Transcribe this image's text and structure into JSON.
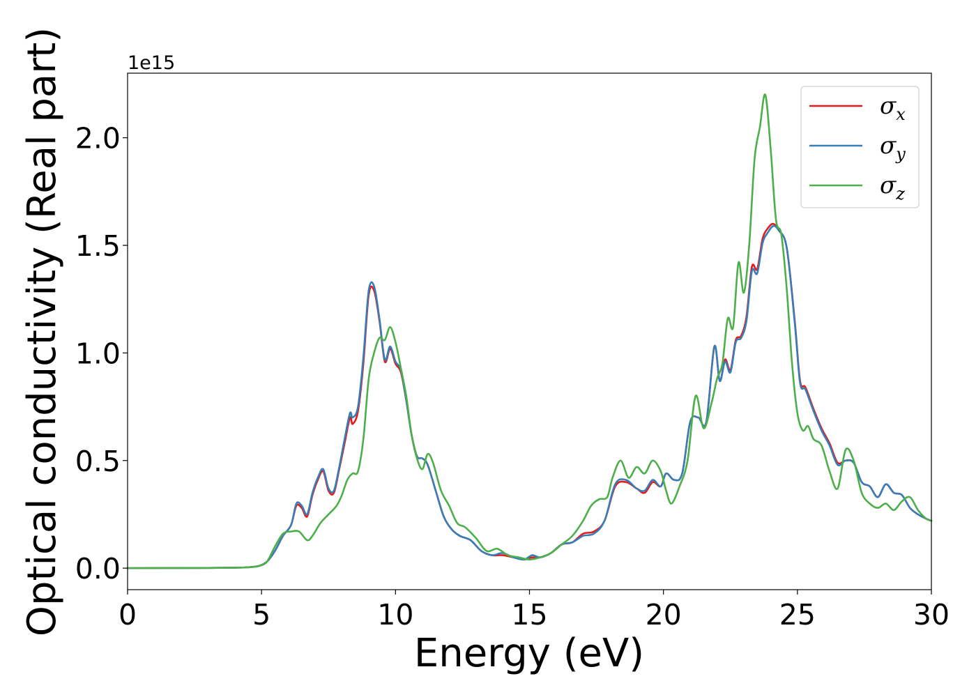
{
  "chart_data": {
    "type": "line",
    "xlabel": "Energy (eV)",
    "ylabel": "Optical conductivity (Real part)",
    "y_offset_text": "1e15",
    "xlim": [
      0,
      30
    ],
    "ylim": [
      -0.1,
      2.3
    ],
    "xticks": [
      {
        "value": 0,
        "label": "0"
      },
      {
        "value": 5,
        "label": "5"
      },
      {
        "value": 10,
        "label": "10"
      },
      {
        "value": 15,
        "label": "15"
      },
      {
        "value": 20,
        "label": "20"
      },
      {
        "value": 25,
        "label": "25"
      },
      {
        "value": 30,
        "label": "30"
      }
    ],
    "yticks": [
      {
        "value": 0.0,
        "label": "0.0"
      },
      {
        "value": 0.5,
        "label": "0.5"
      },
      {
        "value": 1.0,
        "label": "1.0"
      },
      {
        "value": 1.5,
        "label": "1.5"
      },
      {
        "value": 2.0,
        "label": "2.0"
      }
    ],
    "grid": false,
    "legend_position": "top-right",
    "series": [
      {
        "name": "σx",
        "name_base": "σ",
        "name_sub": "x",
        "color": "#e41a1c",
        "x": [
          0,
          3,
          4,
          4.5,
          4.9,
          5.2,
          5.5,
          5.8,
          6.1,
          6.3,
          6.5,
          6.7,
          6.9,
          7.1,
          7.3,
          7.5,
          7.7,
          7.9,
          8.1,
          8.3,
          8.4,
          8.6,
          8.8,
          9.0,
          9.2,
          9.4,
          9.6,
          9.8,
          10.0,
          10.2,
          10.4,
          10.6,
          10.8,
          11.0,
          11.2,
          11.5,
          11.8,
          12.1,
          12.4,
          12.8,
          13.2,
          13.6,
          14.0,
          14.4,
          14.8,
          15.1,
          15.4,
          15.8,
          16.2,
          16.6,
          17.0,
          17.4,
          17.8,
          18.2,
          18.6,
          19.0,
          19.3,
          19.6,
          19.9,
          20.1,
          20.4,
          20.7,
          21.0,
          21.3,
          21.6,
          21.9,
          22.1,
          22.3,
          22.5,
          22.7,
          22.9,
          23.1,
          23.3,
          23.5,
          23.7,
          23.9,
          24.1,
          24.3,
          24.6,
          24.9,
          25.1,
          25.3,
          25.6,
          25.9,
          26.2,
          26.5,
          26.8,
          27.1,
          27.4,
          27.7,
          28.0,
          28.3,
          28.6,
          28.9,
          29.2,
          29.5,
          29.8,
          30.0
        ],
        "values": [
          0,
          0.001,
          0.002,
          0.004,
          0.01,
          0.03,
          0.08,
          0.15,
          0.2,
          0.29,
          0.28,
          0.24,
          0.34,
          0.41,
          0.45,
          0.36,
          0.35,
          0.46,
          0.58,
          0.7,
          0.67,
          0.73,
          0.95,
          1.27,
          1.29,
          1.15,
          0.96,
          1.02,
          0.95,
          0.91,
          0.78,
          0.62,
          0.52,
          0.51,
          0.48,
          0.36,
          0.24,
          0.18,
          0.15,
          0.13,
          0.08,
          0.06,
          0.06,
          0.05,
          0.04,
          0.05,
          0.05,
          0.07,
          0.11,
          0.12,
          0.16,
          0.17,
          0.22,
          0.38,
          0.4,
          0.37,
          0.35,
          0.4,
          0.38,
          0.44,
          0.41,
          0.44,
          0.68,
          0.7,
          0.68,
          1.03,
          0.87,
          0.97,
          0.92,
          1.06,
          1.08,
          1.17,
          1.4,
          1.39,
          1.53,
          1.58,
          1.6,
          1.57,
          1.49,
          1.15,
          0.87,
          0.84,
          0.74,
          0.65,
          0.58,
          0.49,
          0.5,
          0.49,
          0.4,
          0.38,
          0.33,
          0.39,
          0.35,
          0.34,
          0.28,
          0.25,
          0.23,
          0.22
        ]
      },
      {
        "name": "σy",
        "name_base": "σ",
        "name_sub": "y",
        "color": "#377eb8",
        "x": [
          0,
          3,
          4,
          4.5,
          4.9,
          5.2,
          5.5,
          5.8,
          6.1,
          6.3,
          6.5,
          6.7,
          6.9,
          7.1,
          7.3,
          7.5,
          7.7,
          7.9,
          8.1,
          8.3,
          8.4,
          8.6,
          8.8,
          9.0,
          9.2,
          9.4,
          9.6,
          9.8,
          10.0,
          10.2,
          10.4,
          10.6,
          10.8,
          11.0,
          11.2,
          11.5,
          11.8,
          12.1,
          12.4,
          12.8,
          13.2,
          13.6,
          14.0,
          14.4,
          14.8,
          15.1,
          15.4,
          15.8,
          16.2,
          16.6,
          17.0,
          17.4,
          17.8,
          18.2,
          18.6,
          19.0,
          19.3,
          19.6,
          19.9,
          20.1,
          20.4,
          20.7,
          21.0,
          21.3,
          21.6,
          21.9,
          22.1,
          22.3,
          22.5,
          22.7,
          22.9,
          23.1,
          23.3,
          23.5,
          23.7,
          23.9,
          24.1,
          24.3,
          24.6,
          24.9,
          25.1,
          25.3,
          25.6,
          25.9,
          26.2,
          26.5,
          26.8,
          27.1,
          27.4,
          27.7,
          28.0,
          28.3,
          28.6,
          28.9,
          29.2,
          29.5,
          29.8,
          30.0
        ],
        "values": [
          0,
          0.001,
          0.002,
          0.004,
          0.01,
          0.03,
          0.08,
          0.15,
          0.2,
          0.3,
          0.29,
          0.25,
          0.35,
          0.42,
          0.46,
          0.37,
          0.36,
          0.47,
          0.6,
          0.72,
          0.7,
          0.75,
          0.98,
          1.29,
          1.31,
          1.16,
          0.97,
          1.03,
          0.96,
          0.92,
          0.78,
          0.62,
          0.52,
          0.51,
          0.48,
          0.36,
          0.24,
          0.18,
          0.15,
          0.13,
          0.08,
          0.06,
          0.07,
          0.05,
          0.04,
          0.06,
          0.05,
          0.07,
          0.11,
          0.12,
          0.15,
          0.16,
          0.22,
          0.39,
          0.41,
          0.37,
          0.36,
          0.41,
          0.38,
          0.44,
          0.41,
          0.44,
          0.68,
          0.7,
          0.68,
          1.03,
          0.87,
          0.96,
          0.91,
          1.05,
          1.07,
          1.15,
          1.38,
          1.37,
          1.51,
          1.56,
          1.59,
          1.57,
          1.49,
          1.14,
          0.86,
          0.83,
          0.73,
          0.64,
          0.57,
          0.48,
          0.5,
          0.49,
          0.4,
          0.38,
          0.33,
          0.39,
          0.35,
          0.34,
          0.28,
          0.25,
          0.23,
          0.22
        ]
      },
      {
        "name": "σz",
        "name_base": "σ",
        "name_sub": "z",
        "color": "#4daf4a",
        "x": [
          0,
          3,
          4,
          4.5,
          4.9,
          5.2,
          5.5,
          5.8,
          6.1,
          6.4,
          6.7,
          6.9,
          7.2,
          7.5,
          7.8,
          8.0,
          8.2,
          8.4,
          8.6,
          8.8,
          9.0,
          9.2,
          9.4,
          9.6,
          9.8,
          10.0,
          10.2,
          10.4,
          10.6,
          10.8,
          11.0,
          11.2,
          11.4,
          11.7,
          12.0,
          12.3,
          12.6,
          13.0,
          13.4,
          13.8,
          14.2,
          14.6,
          15.0,
          15.4,
          15.8,
          16.2,
          16.6,
          17.0,
          17.3,
          17.6,
          17.9,
          18.1,
          18.4,
          18.7,
          19.0,
          19.3,
          19.6,
          19.9,
          20.1,
          20.3,
          20.6,
          20.9,
          21.2,
          21.5,
          21.8,
          22.0,
          22.2,
          22.4,
          22.6,
          22.8,
          23.0,
          23.2,
          23.4,
          23.6,
          23.8,
          24.0,
          24.2,
          24.4,
          24.6,
          24.8,
          25.0,
          25.2,
          25.4,
          25.6,
          25.9,
          26.2,
          26.5,
          26.8,
          27.1,
          27.4,
          27.7,
          28.0,
          28.3,
          28.6,
          28.9,
          29.2,
          29.5,
          29.8,
          30.0
        ],
        "values": [
          0,
          0.001,
          0.002,
          0.004,
          0.01,
          0.03,
          0.1,
          0.16,
          0.17,
          0.17,
          0.13,
          0.15,
          0.21,
          0.25,
          0.29,
          0.34,
          0.41,
          0.44,
          0.45,
          0.6,
          0.88,
          1.0,
          1.07,
          1.06,
          1.12,
          1.05,
          0.93,
          0.8,
          0.62,
          0.51,
          0.46,
          0.53,
          0.49,
          0.36,
          0.29,
          0.21,
          0.19,
          0.14,
          0.08,
          0.09,
          0.06,
          0.05,
          0.04,
          0.05,
          0.07,
          0.11,
          0.15,
          0.22,
          0.29,
          0.32,
          0.33,
          0.42,
          0.5,
          0.42,
          0.47,
          0.44,
          0.5,
          0.45,
          0.36,
          0.3,
          0.38,
          0.5,
          0.8,
          0.65,
          0.77,
          0.88,
          0.95,
          1.16,
          1.12,
          1.42,
          1.28,
          1.5,
          1.9,
          2.05,
          2.2,
          1.95,
          1.62,
          1.55,
          1.3,
          0.95,
          0.72,
          0.64,
          0.66,
          0.6,
          0.57,
          0.45,
          0.37,
          0.55,
          0.5,
          0.35,
          0.3,
          0.28,
          0.3,
          0.27,
          0.31,
          0.33,
          0.27,
          0.23,
          0.22
        ]
      }
    ]
  }
}
